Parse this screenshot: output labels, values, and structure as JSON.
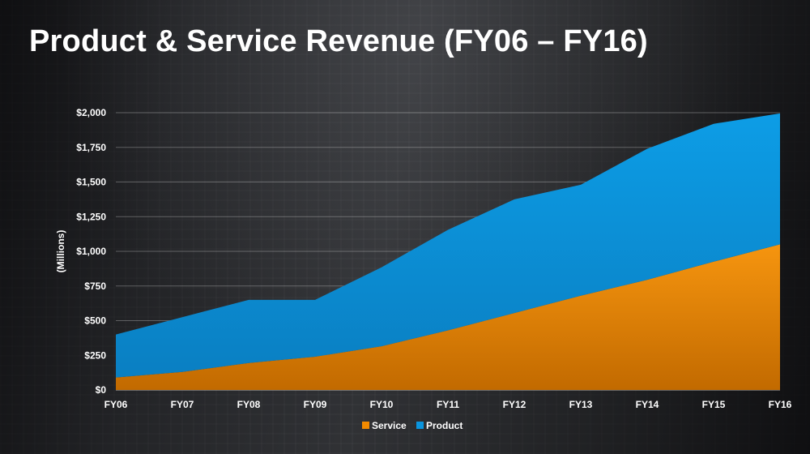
{
  "slide": {
    "title": "Product & Service Revenue (FY06 – FY16)"
  },
  "chart_data": {
    "type": "area",
    "stacked": true,
    "title": "",
    "xlabel": "",
    "ylabel": "(Millions)",
    "x": [
      "FY06",
      "FY07",
      "FY08",
      "FY09",
      "FY10",
      "FY11",
      "FY12",
      "FY13",
      "FY14",
      "FY15",
      "FY16"
    ],
    "ylim": [
      0,
      2000
    ],
    "yticks": [
      {
        "value": 0,
        "label": "$0"
      },
      {
        "value": 250,
        "label": "$250"
      },
      {
        "value": 500,
        "label": "$500"
      },
      {
        "value": 750,
        "label": "$750"
      },
      {
        "value": 1000,
        "label": "$1,000"
      },
      {
        "value": 1250,
        "label": "$1,250"
      },
      {
        "value": 1500,
        "label": "$1,500"
      },
      {
        "value": 1750,
        "label": "$1,750"
      },
      {
        "value": 2000,
        "label": "$2,000"
      }
    ],
    "grid": true,
    "legend_position": "bottom",
    "series": [
      {
        "name": "Service",
        "color": "#f28a00",
        "values": [
          90,
          130,
          195,
          240,
          315,
          430,
          555,
          680,
          795,
          925,
          1050
        ]
      },
      {
        "name": "Product",
        "color": "#0a94dd",
        "values": [
          310,
          395,
          455,
          410,
          570,
          725,
          820,
          800,
          945,
          995,
          945
        ]
      }
    ]
  }
}
